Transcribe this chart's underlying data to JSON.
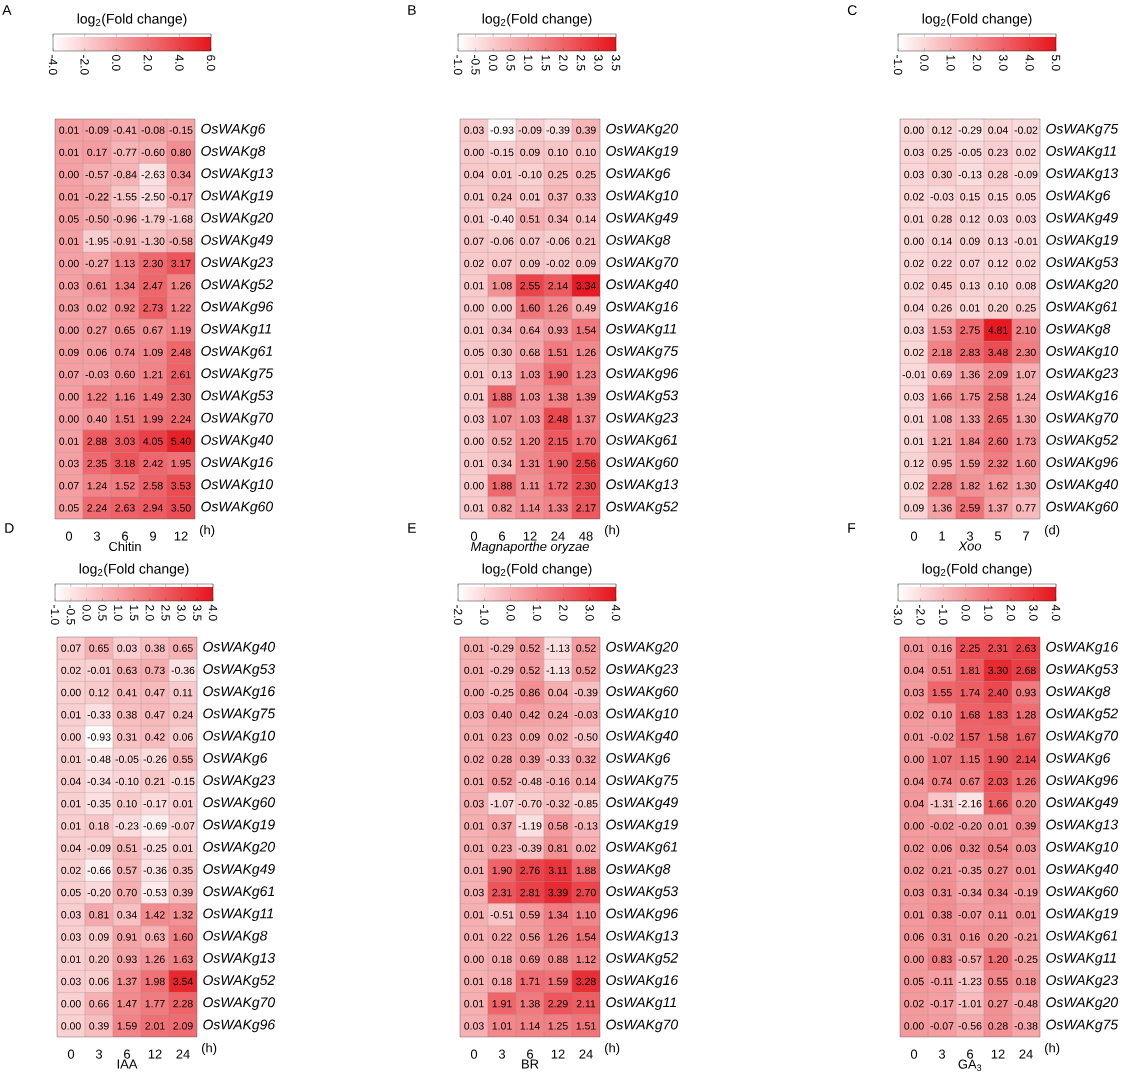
{
  "chart_data": [
    {
      "type": "heatmap",
      "title": "A",
      "xlabel": "Chitin",
      "clabel": "log$_{2}$(Fold change)",
      "annotations": [
        "(h)"
      ],
      "categories": [
        "0",
        "3",
        "6",
        "9",
        "12"
      ],
      "y_categories": [
        "OsWAKg6",
        "OsWAKg8",
        "OsWAKg13",
        "OsWAKg19",
        "OsWAKg20",
        "OsWAKg49",
        "OsWAKg23",
        "OsWAKg52",
        "OsWAKg96",
        "OsWAKg11",
        "OsWAKg61",
        "OsWAKg75",
        "OsWAKg53",
        "OsWAKg70",
        "OsWAKg40",
        "OsWAKg16",
        "OsWAKg10",
        "OsWAKg60"
      ],
      "clim": [
        -4,
        6
      ],
      "cticks": [
        {
          "value": -4,
          "label": "-4.0"
        },
        {
          "value": -2,
          "label": "-2.0"
        },
        {
          "value": 0,
          "label": "0.0"
        },
        {
          "value": 2,
          "label": "2.0"
        },
        {
          "value": 4,
          "label": "4.0"
        },
        {
          "value": 6,
          "label": "6.0"
        }
      ],
      "cells": [
        [
          0.01,
          -0.09,
          -0.41,
          -0.08,
          -0.15
        ],
        [
          0.01,
          0.17,
          -0.77,
          -0.6,
          0.8
        ],
        [
          0.0,
          -0.57,
          -0.84,
          -2.63,
          0.34
        ],
        [
          0.01,
          -0.22,
          -1.55,
          -2.5,
          -0.17
        ],
        [
          0.05,
          -0.5,
          -0.96,
          -1.79,
          -1.68
        ],
        [
          0.01,
          -1.95,
          -0.91,
          -1.3,
          -0.58
        ],
        [
          0.0,
          -0.27,
          1.13,
          2.3,
          3.17
        ],
        [
          0.03,
          0.61,
          1.34,
          2.47,
          1.26
        ],
        [
          0.03,
          0.02,
          0.92,
          2.73,
          1.22
        ],
        [
          0.0,
          0.27,
          0.65,
          0.67,
          1.19
        ],
        [
          0.09,
          0.06,
          0.74,
          1.09,
          2.48
        ],
        [
          0.07,
          -0.03,
          0.6,
          1.21,
          2.61
        ],
        [
          0.0,
          1.22,
          1.16,
          1.49,
          2.3
        ],
        [
          0.0,
          0.4,
          1.51,
          1.99,
          2.24
        ],
        [
          0.01,
          2.88,
          3.03,
          4.05,
          5.4
        ],
        [
          0.03,
          2.35,
          3.18,
          2.42,
          1.95
        ],
        [
          0.07,
          1.24,
          1.52,
          2.58,
          3.53
        ],
        [
          0.05,
          2.24,
          2.63,
          2.94,
          3.5
        ]
      ],
      "cell_labels": [
        [
          "0.01",
          "-0.09",
          "-0.41",
          "-0.08",
          "-0.15"
        ],
        [
          "0.01",
          "0.17",
          "-0.77",
          "-0.60",
          "0.80"
        ],
        [
          "0.00",
          "-0.57",
          "-0.84",
          "-2.63",
          "0.34"
        ],
        [
          "0.01",
          "-0.22",
          "-1.55",
          "-2.50",
          "-0.17"
        ],
        [
          "0.05",
          "-0.50",
          "-0.96",
          "-1.79",
          "-1.68"
        ],
        [
          "0.01",
          "-1.95",
          "-0.91",
          "-1.30",
          "-0.58"
        ],
        [
          "0.00",
          "-0.27",
          "1.13",
          "2.30",
          "3.17"
        ],
        [
          "0.03",
          "0.61",
          "1.34",
          "2.47",
          "1.26"
        ],
        [
          "0.03",
          "0.02",
          "0.92",
          "2.73",
          "1.22"
        ],
        [
          "0.00",
          "0.27",
          "0.65",
          "0.67",
          "1.19"
        ],
        [
          "0.09",
          "0.06",
          "0.74",
          "1.09",
          "2.48"
        ],
        [
          "0.07",
          "-0.03",
          "0.60",
          "1.21",
          "2.61"
        ],
        [
          "0.00",
          "1.22",
          "1.16",
          "1.49",
          "2.30"
        ],
        [
          "0.00",
          "0.40",
          "1.51",
          "1.99",
          "2.24"
        ],
        [
          "0.01",
          "2.88",
          "3.03",
          "4.05",
          "5.40"
        ],
        [
          "0.03",
          "2.35",
          "3.18",
          "2.42",
          "1.95"
        ],
        [
          "0.07",
          "1.24",
          "1.52",
          "2.58",
          "3.53"
        ],
        [
          "0.05",
          "2.24",
          "2.63",
          "2.94",
          "3.50"
        ]
      ]
    },
    {
      "type": "heatmap",
      "title": "B",
      "xlabel": "*Magnaporthe oryzae*",
      "clabel": "log$_{2}$(Fold change)",
      "annotations": [
        "(h)"
      ],
      "categories": [
        "0",
        "6",
        "12",
        "24",
        "48"
      ],
      "y_categories": [
        "OsWAKg20",
        "OsWAKg19",
        "OsWAKg6",
        "OsWAKg10",
        "OsWAKg49",
        "OsWAKg8",
        "OsWAKg70",
        "OsWAKg40",
        "OsWAKg16",
        "OsWAKg11",
        "OsWAKg75",
        "OsWAKg96",
        "OsWAKg53",
        "OsWAKg23",
        "OsWAKg61",
        "OsWAKg60",
        "OsWAKg13",
        "OsWAKg52"
      ],
      "clim": [
        -1,
        3.5
      ],
      "cticks": [
        {
          "value": -1,
          "label": "-1.0"
        },
        {
          "value": -0.5,
          "label": "-0.5"
        },
        {
          "value": 0,
          "label": "0.0"
        },
        {
          "value": 0.5,
          "label": "0.5"
        },
        {
          "value": 1,
          "label": "1.0"
        },
        {
          "value": 1.5,
          "label": "1.5"
        },
        {
          "value": 2,
          "label": "2.0"
        },
        {
          "value": 2.5,
          "label": "2.5"
        },
        {
          "value": 3,
          "label": "3.0"
        },
        {
          "value": 3.5,
          "label": "3.5"
        }
      ],
      "cells": [
        [
          0.03,
          -0.93,
          -0.09,
          -0.39,
          0.39
        ],
        [
          0.0,
          -0.15,
          0.09,
          0.1,
          0.1
        ],
        [
          0.04,
          0.01,
          -0.1,
          0.25,
          0.25
        ],
        [
          0.01,
          0.24,
          0.01,
          0.37,
          0.33
        ],
        [
          0.01,
          -0.4,
          0.51,
          0.34,
          0.14
        ],
        [
          0.07,
          -0.06,
          0.07,
          -0.06,
          0.21
        ],
        [
          0.02,
          0.07,
          0.09,
          -0.02,
          0.09
        ],
        [
          0.01,
          1.08,
          2.55,
          2.14,
          3.34
        ],
        [
          0.0,
          0.0,
          1.6,
          1.26,
          0.49
        ],
        [
          0.01,
          0.34,
          0.64,
          0.93,
          1.54
        ],
        [
          0.05,
          0.3,
          0.68,
          1.51,
          1.26
        ],
        [
          0.01,
          0.13,
          1.03,
          1.9,
          1.23
        ],
        [
          0.01,
          1.88,
          1.03,
          1.38,
          1.39
        ],
        [
          0.03,
          1.07,
          1.03,
          2.48,
          1.37
        ],
        [
          0.0,
          0.52,
          1.2,
          2.15,
          1.7
        ],
        [
          0.01,
          0.34,
          1.31,
          1.9,
          2.56
        ],
        [
          0.0,
          1.88,
          1.11,
          1.72,
          2.3
        ],
        [
          0.01,
          0.82,
          1.14,
          1.33,
          2.17
        ]
      ],
      "cell_labels": [
        [
          "0.03",
          "-0.93",
          "-0.09",
          "-0.39",
          "0.39"
        ],
        [
          "0.00",
          "-0.15",
          "0.09",
          "0.10",
          "0.10"
        ],
        [
          "0.04",
          "0.01",
          "-0.10",
          "0.25",
          "0.25"
        ],
        [
          "0.01",
          "0.24",
          "0.01",
          "0.37",
          "0.33"
        ],
        [
          "0.01",
          "-0.40",
          "0.51",
          "0.34",
          "0.14"
        ],
        [
          "0.07",
          "-0.06",
          "0.07",
          "-0.06",
          "0.21"
        ],
        [
          "0.02",
          "0.07",
          "0.09",
          "-0.02",
          "0.09"
        ],
        [
          "0.01",
          "1.08",
          "2.55",
          "2.14",
          "3.34"
        ],
        [
          "0.00",
          "0.00",
          "1.60",
          "1.26",
          "0.49"
        ],
        [
          "0.01",
          "0.34",
          "0.64",
          "0.93",
          "1.54"
        ],
        [
          "0.05",
          "0.30",
          "0.68",
          "1.51",
          "1.26"
        ],
        [
          "0.01",
          "0.13",
          "1.03",
          "1.90",
          "1.23"
        ],
        [
          "0.01",
          "1.88",
          "1.03",
          "1.38",
          "1.39"
        ],
        [
          "0.03",
          "1.07",
          "1.03",
          "2.48",
          "1.37"
        ],
        [
          "0.00",
          "0.52",
          "1.20",
          "2.15",
          "1.70"
        ],
        [
          "0.01",
          "0.34",
          "1.31",
          "1.90",
          "2.56"
        ],
        [
          "0.00",
          "1.88",
          "1.11",
          "1.72",
          "2.30"
        ],
        [
          "0.01",
          "0.82",
          "1.14",
          "1.33",
          "2.17"
        ]
      ]
    },
    {
      "type": "heatmap",
      "title": "C",
      "xlabel": "*Xoo*",
      "clabel": "log$_{2}$(Fold change)",
      "annotations": [
        "(d)"
      ],
      "categories": [
        "0",
        "1",
        "3",
        "5",
        "7"
      ],
      "y_categories": [
        "OsWAKg75",
        "OsWAKg11",
        "OsWAKg13",
        "OsWAKg6",
        "OsWAKg49",
        "OsWAKg19",
        "OsWAKg53",
        "OsWAKg20",
        "OsWAKg61",
        "OsWAKg8",
        "OsWAKg10",
        "OsWAKg23",
        "OsWAKg16",
        "OsWAKg70",
        "OsWAKg52",
        "OsWAKg96",
        "OsWAKg40",
        "OsWAKg60"
      ],
      "clim": [
        -1,
        5
      ],
      "cticks": [
        {
          "value": -1,
          "label": "-1.0"
        },
        {
          "value": 0,
          "label": "0.0"
        },
        {
          "value": 1,
          "label": "1.0"
        },
        {
          "value": 2,
          "label": "2.0"
        },
        {
          "value": 3,
          "label": "3.0"
        },
        {
          "value": 4,
          "label": "4.0"
        },
        {
          "value": 5,
          "label": "5.0"
        }
      ],
      "cells": [
        [
          0.0,
          0.12,
          -0.29,
          0.04,
          -0.02
        ],
        [
          0.03,
          0.25,
          -0.05,
          0.23,
          0.02
        ],
        [
          0.03,
          0.3,
          -0.13,
          0.28,
          -0.09
        ],
        [
          0.02,
          -0.03,
          0.15,
          0.15,
          0.05
        ],
        [
          0.01,
          0.28,
          0.12,
          0.03,
          0.03
        ],
        [
          0.0,
          0.14,
          0.09,
          0.13,
          -0.01
        ],
        [
          0.02,
          0.22,
          0.07,
          0.12,
          0.02
        ],
        [
          0.02,
          0.45,
          0.13,
          0.1,
          0.08
        ],
        [
          0.04,
          0.26,
          0.01,
          0.2,
          0.25
        ],
        [
          0.03,
          1.53,
          2.75,
          4.81,
          2.1
        ],
        [
          0.02,
          2.18,
          2.83,
          3.48,
          2.3
        ],
        [
          -0.01,
          0.69,
          1.36,
          2.09,
          1.07
        ],
        [
          0.03,
          1.66,
          1.75,
          2.58,
          1.24
        ],
        [
          0.01,
          1.08,
          1.33,
          2.65,
          1.3
        ],
        [
          0.01,
          1.21,
          1.84,
          2.6,
          1.73
        ],
        [
          0.12,
          0.95,
          1.59,
          2.32,
          1.6
        ],
        [
          0.02,
          2.28,
          1.82,
          1.62,
          1.3
        ],
        [
          0.09,
          1.36,
          2.59,
          1.37,
          0.77
        ]
      ],
      "cell_labels": [
        [
          "0.00",
          "0.12",
          "-0.29",
          "0.04",
          "-0.02"
        ],
        [
          "0.03",
          "0.25",
          "-0.05",
          "0.23",
          "0.02"
        ],
        [
          "0.03",
          "0.30",
          "-0.13",
          "0.28",
          "-0.09"
        ],
        [
          "0.02",
          "-0.03",
          "0.15",
          "0.15",
          "0.05"
        ],
        [
          "0.01",
          "0.28",
          "0.12",
          "0.03",
          "0.03"
        ],
        [
          "0.00",
          "0.14",
          "0.09",
          "0.13",
          "-0.01"
        ],
        [
          "0.02",
          "0.22",
          "0.07",
          "0.12",
          "0.02"
        ],
        [
          "0.02",
          "0.45",
          "0.13",
          "0.10",
          "0.08"
        ],
        [
          "0.04",
          "0.26",
          "0.01",
          "0.20",
          "0.25"
        ],
        [
          "0.03",
          "1.53",
          "2.75",
          "4.81",
          "2.10"
        ],
        [
          "0.02",
          "2.18",
          "2.83",
          "3.48",
          "2.30"
        ],
        [
          "-0.01",
          "0.69",
          "1.36",
          "2.09",
          "1.07"
        ],
        [
          "0.03",
          "1.66",
          "1.75",
          "2.58",
          "1.24"
        ],
        [
          "0.01",
          "1.08",
          "1.33",
          "2.65",
          "1.30"
        ],
        [
          "0.01",
          "1.21",
          "1.84",
          "2.60",
          "1.73"
        ],
        [
          "0.12",
          "0.95",
          "1.59",
          "2.32",
          "1.60"
        ],
        [
          "0.02",
          "2.28",
          "1.82",
          "1.62",
          "1.30"
        ],
        [
          "0.09",
          "1.36",
          "2.59",
          "1.37",
          "0.77"
        ]
      ]
    },
    {
      "type": "heatmap",
      "title": "D",
      "xlabel": "IAA",
      "clabel": "log$_{2}$(Fold change)",
      "annotations": [
        "(h)"
      ],
      "categories": [
        "0",
        "3",
        "6",
        "12",
        "24"
      ],
      "y_categories": [
        "OsWAKg40",
        "OsWAKg53",
        "OsWAKg16",
        "OsWAKg75",
        "OsWAKg10",
        "OsWAKg6",
        "OsWAKg23",
        "OsWAKg60",
        "OsWAKg19",
        "OsWAKg20",
        "OsWAKg49",
        "OsWAKg61",
        "OsWAKg11",
        "OsWAKg8",
        "OsWAKg13",
        "OsWAKg52",
        "OsWAKg70",
        "OsWAKg96"
      ],
      "clim": [
        -1,
        4
      ],
      "cticks": [
        {
          "value": -1,
          "label": "-1.0"
        },
        {
          "value": -0.5,
          "label": "-0.5"
        },
        {
          "value": 0,
          "label": "0.0"
        },
        {
          "value": 0.5,
          "label": "0.5"
        },
        {
          "value": 1,
          "label": "1.0"
        },
        {
          "value": 1.5,
          "label": "1.5"
        },
        {
          "value": 2,
          "label": "2.0"
        },
        {
          "value": 2.5,
          "label": "2.5"
        },
        {
          "value": 3,
          "label": "3.0"
        },
        {
          "value": 3.5,
          "label": "3.5"
        },
        {
          "value": 4,
          "label": "4.0"
        }
      ],
      "cells": [
        [
          0.07,
          0.65,
          0.03,
          0.38,
          0.65
        ],
        [
          0.02,
          -0.01,
          0.63,
          0.73,
          -0.36
        ],
        [
          0.0,
          0.12,
          0.41,
          0.47,
          0.11
        ],
        [
          0.01,
          -0.33,
          0.38,
          0.47,
          0.24
        ],
        [
          0.0,
          -0.93,
          0.31,
          0.42,
          0.06
        ],
        [
          0.01,
          -0.48,
          -0.05,
          -0.26,
          0.55
        ],
        [
          0.04,
          -0.34,
          -0.1,
          0.21,
          -0.15
        ],
        [
          0.01,
          -0.35,
          0.1,
          -0.17,
          0.01
        ],
        [
          0.01,
          0.18,
          -0.23,
          -0.69,
          -0.07
        ],
        [
          0.04,
          -0.09,
          0.51,
          -0.25,
          0.01
        ],
        [
          0.02,
          -0.66,
          0.57,
          -0.36,
          0.35
        ],
        [
          0.05,
          -0.2,
          0.7,
          -0.53,
          0.39
        ],
        [
          0.03,
          0.81,
          0.34,
          1.42,
          1.32
        ],
        [
          0.03,
          0.09,
          0.91,
          0.63,
          1.6
        ],
        [
          0.01,
          0.2,
          0.93,
          1.26,
          1.63
        ],
        [
          0.03,
          0.06,
          1.37,
          1.98,
          3.54
        ],
        [
          0.0,
          0.66,
          1.47,
          1.77,
          2.28
        ],
        [
          0.0,
          0.39,
          1.59,
          2.01,
          2.09
        ]
      ],
      "cell_labels": [
        [
          "0.07",
          "0.65",
          "0.03",
          "0.38",
          "0.65"
        ],
        [
          "0.02",
          "-0.01",
          "0.63",
          "0.73",
          "-0.36"
        ],
        [
          "0.00",
          "0.12",
          "0.41",
          "0.47",
          "0.11"
        ],
        [
          "0.01",
          "-0.33",
          "0.38",
          "0.47",
          "0.24"
        ],
        [
          "0.00",
          "-0.93",
          "0.31",
          "0.42",
          "0.06"
        ],
        [
          "0.01",
          "-0.48",
          "-0.05",
          "-0.26",
          "0.55"
        ],
        [
          "0.04",
          "-0.34",
          "-0.10",
          "0.21",
          "-0.15"
        ],
        [
          "0.01",
          "-0.35",
          "0.10",
          "-0.17",
          "0.01"
        ],
        [
          "0.01",
          "0.18",
          "-0.23",
          "-0.69",
          "-0.07"
        ],
        [
          "0.04",
          "-0.09",
          "0.51",
          "-0.25",
          "0.01"
        ],
        [
          "0.02",
          "-0.66",
          "0.57",
          "-0.36",
          "0.35"
        ],
        [
          "0.05",
          "-0.20",
          "0.70",
          "-0.53",
          "0.39"
        ],
        [
          "0.03",
          "0.81",
          "0.34",
          "1.42",
          "1.32"
        ],
        [
          "0.03",
          "0.09",
          "0.91",
          "0.63",
          "1.60"
        ],
        [
          "0.01",
          "0.20",
          "0.93",
          "1.26",
          "1.63"
        ],
        [
          "0.03",
          "0.06",
          "1.37",
          "1.98",
          "3.54"
        ],
        [
          "0.00",
          "0.66",
          "1.47",
          "1.77",
          "2.28"
        ],
        [
          "0.00",
          "0.39",
          "1.59",
          "2.01",
          "2.09"
        ]
      ]
    },
    {
      "type": "heatmap",
      "title": "E",
      "xlabel": "BR",
      "clabel": "log$_{2}$(Fold change)",
      "annotations": [
        "(h)"
      ],
      "categories": [
        "0",
        "3",
        "6",
        "12",
        "24"
      ],
      "y_categories": [
        "OsWAKg20",
        "OsWAKg23",
        "OsWAKg60",
        "OsWAKg10",
        "OsWAKg40",
        "OsWAKg6",
        "OsWAKg75",
        "OsWAKg49",
        "OsWAKg19",
        "OsWAKg61",
        "OsWAKg8",
        "OsWAKg53",
        "OsWAKg96",
        "OsWAKg13",
        "OsWAKg52",
        "OsWAKg16",
        "OsWAKg11",
        "OsWAKg70"
      ],
      "clim": [
        -2,
        4
      ],
      "cticks": [
        {
          "value": -2,
          "label": "-2.0"
        },
        {
          "value": -1,
          "label": "-1.0"
        },
        {
          "value": 0,
          "label": "0.0"
        },
        {
          "value": 1,
          "label": "1.0"
        },
        {
          "value": 2,
          "label": "2.0"
        },
        {
          "value": 3,
          "label": "3.0"
        },
        {
          "value": 4,
          "label": "4.0"
        }
      ],
      "cells": [
        [
          0.01,
          -0.29,
          0.52,
          -1.13,
          0.52
        ],
        [
          0.01,
          -0.29,
          0.52,
          -1.13,
          0.52
        ],
        [
          0.0,
          -0.25,
          0.86,
          0.04,
          -0.39
        ],
        [
          0.03,
          0.4,
          0.42,
          0.24,
          -0.03
        ],
        [
          0.01,
          0.23,
          0.09,
          0.02,
          -0.5
        ],
        [
          0.02,
          0.28,
          0.39,
          -0.33,
          0.32
        ],
        [
          0.01,
          0.52,
          -0.48,
          -0.16,
          0.14
        ],
        [
          0.03,
          -1.07,
          -0.7,
          -0.32,
          -0.85
        ],
        [
          0.01,
          0.37,
          -1.19,
          0.58,
          -0.13
        ],
        [
          0.01,
          0.23,
          -0.39,
          0.81,
          0.02
        ],
        [
          0.01,
          1.9,
          2.76,
          3.11,
          1.88
        ],
        [
          0.03,
          2.31,
          2.81,
          3.39,
          2.7
        ],
        [
          0.01,
          -0.51,
          0.59,
          1.34,
          1.1
        ],
        [
          0.01,
          0.22,
          0.56,
          1.26,
          1.54
        ],
        [
          0.0,
          0.18,
          0.69,
          0.88,
          1.12
        ],
        [
          0.01,
          0.18,
          1.71,
          1.59,
          3.28
        ],
        [
          0.01,
          1.91,
          1.38,
          2.29,
          2.11
        ],
        [
          0.03,
          1.01,
          1.14,
          1.25,
          1.51
        ]
      ],
      "cell_labels": [
        [
          "0.01",
          "-0.29",
          "0.52",
          "-1.13",
          "0.52"
        ],
        [
          "0.01",
          "-0.29",
          "0.52",
          "-1.13",
          "0.52"
        ],
        [
          "0.00",
          "-0.25",
          "0.86",
          "0.04",
          "-0.39"
        ],
        [
          "0.03",
          "0.40",
          "0.42",
          "0.24",
          "-0.03"
        ],
        [
          "0.01",
          "0.23",
          "0.09",
          "0.02",
          "-0.50"
        ],
        [
          "0.02",
          "0.28",
          "0.39",
          "-0.33",
          "0.32"
        ],
        [
          "0.01",
          "0.52",
          "-0.48",
          "-0.16",
          "0.14"
        ],
        [
          "0.03",
          "-1.07",
          "-0.70",
          "-0.32",
          "-0.85"
        ],
        [
          "0.01",
          "0.37",
          "-1.19",
          "0.58",
          "-0.13"
        ],
        [
          "0.01",
          "0.23",
          "-0.39",
          "0.81",
          "0.02"
        ],
        [
          "0.01",
          "1.90",
          "2.76",
          "3.11",
          "1.88"
        ],
        [
          "0.03",
          "2.31",
          "2.81",
          "3.39",
          "2.70"
        ],
        [
          "0.01",
          "-0.51",
          "0.59",
          "1.34",
          "1.10"
        ],
        [
          "0.01",
          "0.22",
          "0.56",
          "1.26",
          "1.54"
        ],
        [
          "0.00",
          "0.18",
          "0.69",
          "0.88",
          "1.12"
        ],
        [
          "0.01",
          "0.18",
          "1.71",
          "1.59",
          "3.28"
        ],
        [
          "0.01",
          "1.91",
          "1.38",
          "2.29",
          "2.11"
        ],
        [
          "0.03",
          "1.01",
          "1.14",
          "1.25",
          "1.51"
        ]
      ]
    },
    {
      "type": "heatmap",
      "title": "F",
      "xlabel": "GA$_{3}$",
      "clabel": "log$_{2}$(Fold change)",
      "annotations": [
        "(h)"
      ],
      "categories": [
        "0",
        "3",
        "6",
        "12",
        "24"
      ],
      "y_categories": [
        "OsWAKg16",
        "OsWAKg53",
        "OsWAKg8",
        "OsWAKg52",
        "OsWAKg70",
        "OsWAKg6",
        "OsWAKg96",
        "OsWAKg49",
        "OsWAKg13",
        "OsWAKg10",
        "OsWAKg40",
        "OsWAKg60",
        "OsWAKg19",
        "OsWAKg61",
        "OsWAKg11",
        "OsWAKg23",
        "OsWAKg20",
        "OsWAKg75"
      ],
      "clim": [
        -3,
        4
      ],
      "cticks": [
        {
          "value": -3,
          "label": "-3.0"
        },
        {
          "value": -2,
          "label": "-2.0"
        },
        {
          "value": -1,
          "label": "-1.0"
        },
        {
          "value": 0,
          "label": "0.0"
        },
        {
          "value": 1,
          "label": "1.0"
        },
        {
          "value": 2,
          "label": "2.0"
        },
        {
          "value": 3,
          "label": "3.0"
        },
        {
          "value": 4,
          "label": "4.0"
        }
      ],
      "cells": [
        [
          0.01,
          0.16,
          2.25,
          2.31,
          2.63
        ],
        [
          0.04,
          0.51,
          1.81,
          3.3,
          2.68
        ],
        [
          0.03,
          1.55,
          1.74,
          2.4,
          0.93
        ],
        [
          0.02,
          0.1,
          1.68,
          1.83,
          1.28
        ],
        [
          0.01,
          -0.02,
          1.57,
          1.58,
          1.67
        ],
        [
          0.0,
          1.07,
          1.15,
          1.9,
          2.14
        ],
        [
          0.04,
          0.74,
          0.67,
          2.03,
          1.26
        ],
        [
          0.04,
          -1.31,
          -2.16,
          1.66,
          0.2
        ],
        [
          0.0,
          -0.02,
          -0.2,
          0.01,
          0.39
        ],
        [
          0.02,
          0.06,
          0.32,
          0.54,
          0.03
        ],
        [
          0.02,
          0.21,
          -0.35,
          0.27,
          0.01
        ],
        [
          0.03,
          0.31,
          -0.34,
          0.34,
          -0.19
        ],
        [
          0.01,
          0.38,
          -0.07,
          0.11,
          0.01
        ],
        [
          0.06,
          0.31,
          0.16,
          0.2,
          -0.21
        ],
        [
          0.0,
          0.83,
          -0.57,
          1.2,
          -0.25
        ],
        [
          0.05,
          -0.11,
          -1.23,
          0.55,
          0.18
        ],
        [
          0.02,
          -0.17,
          -1.01,
          0.27,
          -0.48
        ],
        [
          0.0,
          -0.07,
          -0.56,
          0.28,
          -0.38
        ]
      ],
      "cell_labels": [
        [
          "0.01",
          "0.16",
          "2.25",
          "2.31",
          "2.63"
        ],
        [
          "0.04",
          "0.51",
          "1.81",
          "3.30",
          "2.68"
        ],
        [
          "0.03",
          "1.55",
          "1.74",
          "2.40",
          "0.93"
        ],
        [
          "0.02",
          "0.10",
          "1.68",
          "1.83",
          "1.28"
        ],
        [
          "0.01",
          "-0.02",
          "1.57",
          "1.58",
          "1.67"
        ],
        [
          "0.00",
          "1.07",
          "1.15",
          "1.90",
          "2.14"
        ],
        [
          "0.04",
          "0.74",
          "0.67",
          "2.03",
          "1.26"
        ],
        [
          "0.04",
          "-1.31",
          "-2.16",
          "1.66",
          "0.20"
        ],
        [
          "0.00",
          "-0.02",
          "-0.20",
          "0.01",
          "0.39"
        ],
        [
          "0.02",
          "0.06",
          "0.32",
          "0.54",
          "0.03"
        ],
        [
          "0.02",
          "0.21",
          "-0.35",
          "0.27",
          "0.01"
        ],
        [
          "0.03",
          "0.31",
          "-0.34",
          "0.34",
          "-0.19"
        ],
        [
          "0.01",
          "0.38",
          "-0.07",
          "0.11",
          "0.01"
        ],
        [
          "0.06",
          "0.31",
          "0.16",
          "0.20",
          "-0.21"
        ],
        [
          "0.00",
          "0.83",
          "-0.57",
          "1.20",
          "-0.25"
        ],
        [
          "0.05",
          "-0.11",
          "-1.23",
          "0.55",
          "0.18"
        ],
        [
          "0.02",
          "-0.17",
          "-1.01",
          "0.27",
          "-0.48"
        ],
        [
          "0.00",
          "-0.07",
          "-0.56",
          "0.28",
          "-0.38"
        ]
      ]
    }
  ]
}
